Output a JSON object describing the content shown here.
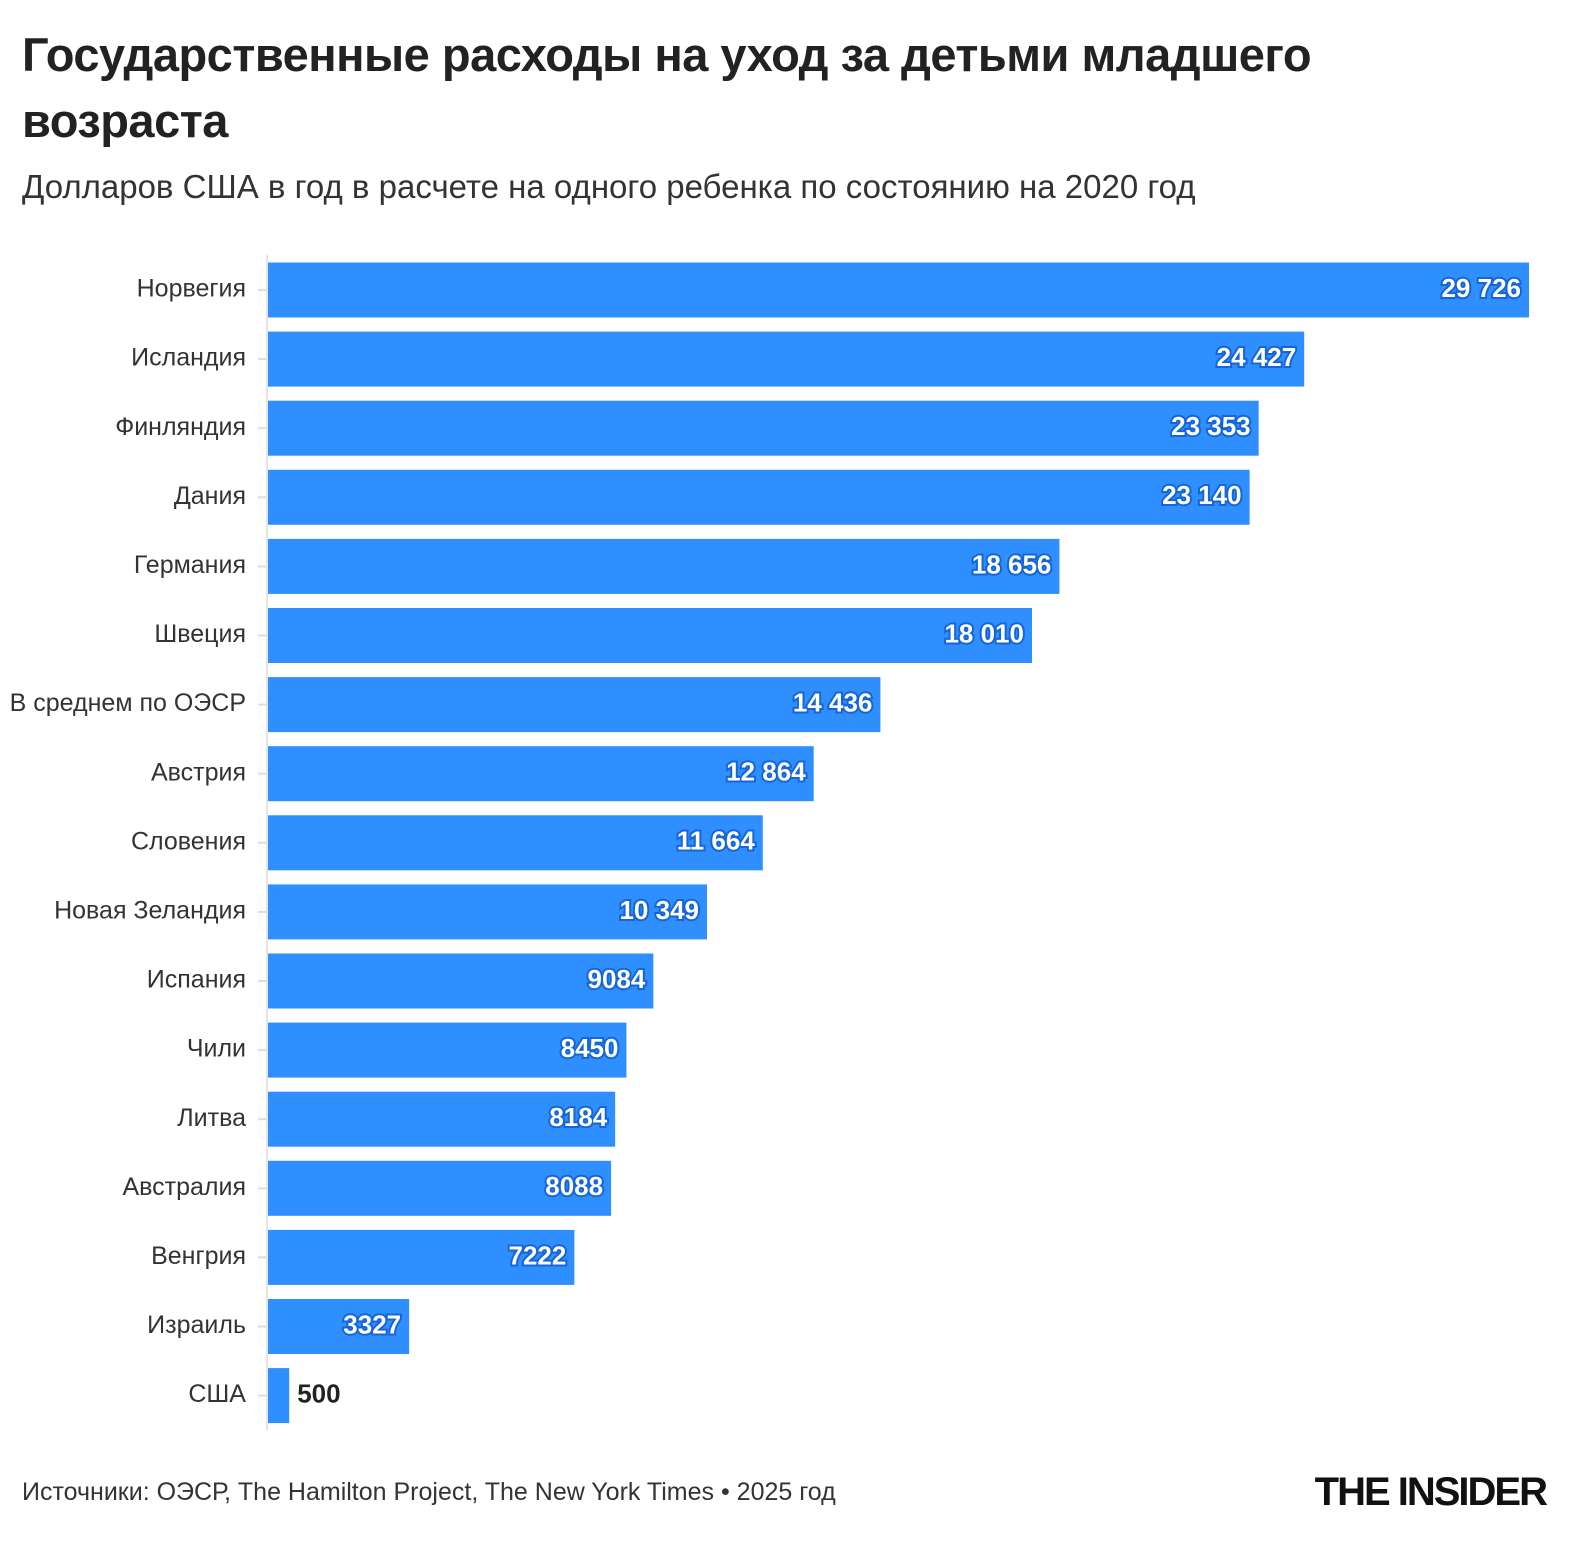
{
  "chart_data": {
    "type": "bar",
    "orientation": "horizontal",
    "title": "Государственные расходы на уход за детьми младшего возраста",
    "subtitle": "Долларов США в год в расчете на одного ребенка по состоянию на 2020 год",
    "categories": [
      "Норвегия",
      "Исландия",
      "Финляндия",
      "Дания",
      "Германия",
      "Швеция",
      "В среднем по ОЭСР",
      "Австрия",
      "Словения",
      "Новая Зеландия",
      "Испания",
      "Чили",
      "Литва",
      "Австралия",
      "Венгрия",
      "Израиль",
      "США"
    ],
    "values": [
      29726,
      24427,
      23353,
      23140,
      18656,
      18010,
      14436,
      12864,
      11664,
      10349,
      9084,
      8450,
      8184,
      8088,
      7222,
      3327,
      500
    ],
    "value_labels": [
      "29 726",
      "24 427",
      "23 353",
      "23 140",
      "18 656",
      "18 010",
      "14 436",
      "12 864",
      "11 664",
      "10 349",
      "9084",
      "8450",
      "8184",
      "8088",
      "7222",
      "3327",
      "500"
    ],
    "color": "#2f8ffe",
    "source": "Источники: ОЭСР, The Hamilton Project, The New York Times • 2025 год",
    "logo": "THE INSIDER"
  }
}
